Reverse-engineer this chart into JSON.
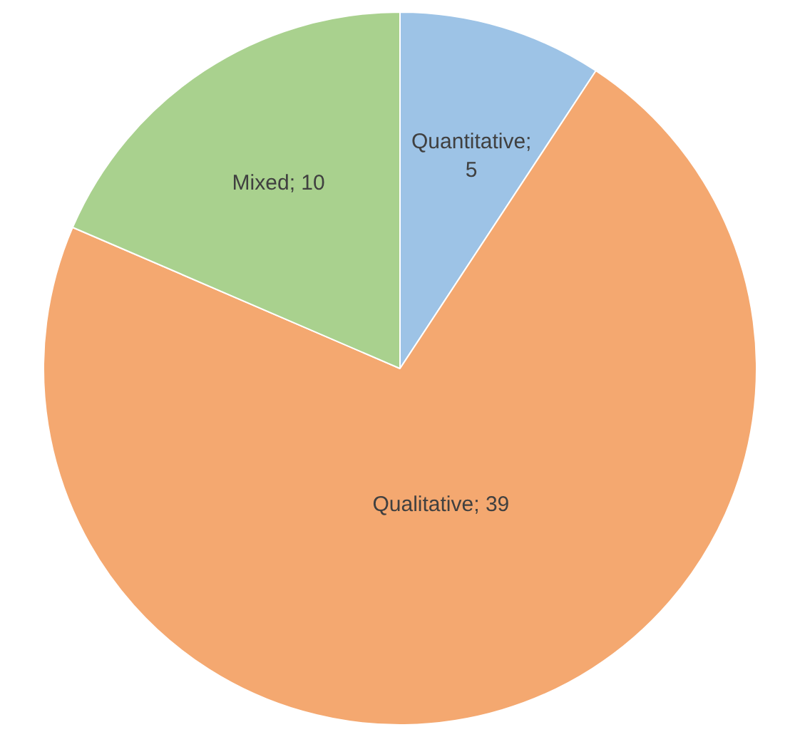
{
  "chart_data": {
    "type": "pie",
    "categories": [
      "Quantitative",
      "Qualitative",
      "Mixed"
    ],
    "values": [
      5,
      39,
      10
    ],
    "colors": [
      "#9dc3e6",
      "#f4a870",
      "#a9d18e"
    ],
    "value_labels": [
      "; 5",
      "; 39",
      "; 10"
    ],
    "legend": false
  }
}
